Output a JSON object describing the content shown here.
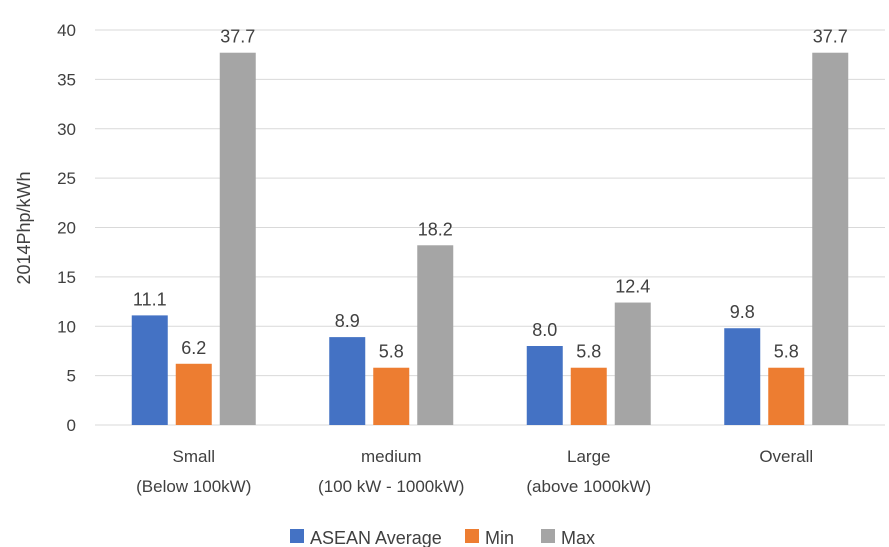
{
  "chart_data": {
    "type": "bar",
    "title": "",
    "xlabel": "",
    "ylabel": "2014Php/kWh",
    "ylim": [
      0,
      40
    ],
    "yticks": [
      0,
      5,
      10,
      15,
      20,
      25,
      30,
      35,
      40
    ],
    "grid": true,
    "legend_position": "bottom",
    "categories": [
      [
        "Small",
        "(Below 100kW)"
      ],
      [
        "medium",
        "(100 kW - 1000kW)"
      ],
      [
        "Large",
        "(above 1000kW)"
      ],
      [
        "Overall"
      ]
    ],
    "series": [
      {
        "name": "ASEAN Average",
        "color": "#4472C4",
        "values": [
          11.1,
          8.9,
          8.0,
          9.8
        ],
        "labels": [
          "11.1",
          "8.9",
          "8.0",
          "9.8"
        ]
      },
      {
        "name": "Min",
        "color": "#ED7D31",
        "values": [
          6.2,
          5.8,
          5.8,
          5.8
        ],
        "labels": [
          "6.2",
          "5.8",
          "5.8",
          "5.8"
        ]
      },
      {
        "name": "Max",
        "color": "#A5A5A5",
        "values": [
          37.7,
          18.2,
          12.4,
          37.7
        ],
        "labels": [
          "37.7",
          "18.2",
          "12.4",
          "37.7"
        ]
      }
    ]
  }
}
